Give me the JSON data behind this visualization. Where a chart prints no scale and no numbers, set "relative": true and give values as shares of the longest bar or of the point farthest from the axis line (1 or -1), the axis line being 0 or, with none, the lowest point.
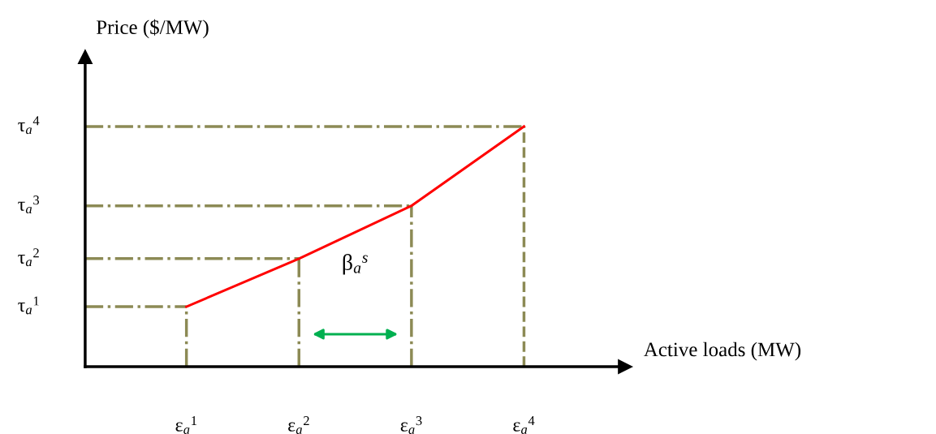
{
  "chart_data": {
    "type": "line",
    "relative": true,
    "xlabel": "Active loads (MW)",
    "ylabel": "Price ($/MW)",
    "categories": [
      "ε$_{a}$$^{1}$",
      "ε$_{a}$$^{2}$",
      "ε$_{a}$$^{3}$",
      "ε$_{a}$$^{4}$"
    ],
    "series": [
      {
        "color": "#ff0000",
        "values": [
          0.25,
          0.45,
          0.67,
          1.0
        ]
      }
    ],
    "ref_lines": [
      {
        "axis": "y",
        "value": 0.25,
        "label": "τ$_{a}$$^{1}$",
        "color": "#8c8a55",
        "line_style": "dashdot"
      },
      {
        "axis": "y",
        "value": 0.45,
        "label": "τ$_{a}$$^{2}$",
        "color": "#8c8a55",
        "line_style": "dashdot"
      },
      {
        "axis": "y",
        "value": 0.67,
        "label": "τ$_{a}$$^{3}$",
        "color": "#8c8a55",
        "line_style": "dashdot"
      },
      {
        "axis": "y",
        "value": 1.0,
        "label": "τ$_{a}$$^{4}$",
        "color": "#8c8a55",
        "line_style": "dashdot"
      },
      {
        "axis": "x",
        "value": "ε$_{a}$$^{1}$",
        "color": "#8c8a55",
        "line_style": "dashdot"
      },
      {
        "axis": "x",
        "value": "ε$_{a}$$^{2}$",
        "color": "#8c8a55",
        "line_style": "dashdot"
      },
      {
        "axis": "x",
        "value": "ε$_{a}$$^{3}$",
        "color": "#8c8a55",
        "line_style": "dashdot"
      },
      {
        "axis": "x",
        "value": "ε$_{a}$$^{4}$",
        "color": "#8c8a55",
        "line_style": "dashed"
      }
    ],
    "annotations": [
      "β$_{a}$$^{s}$"
    ],
    "grid": false,
    "legend": false,
    "marker": "none",
    "line_style": "solid"
  }
}
